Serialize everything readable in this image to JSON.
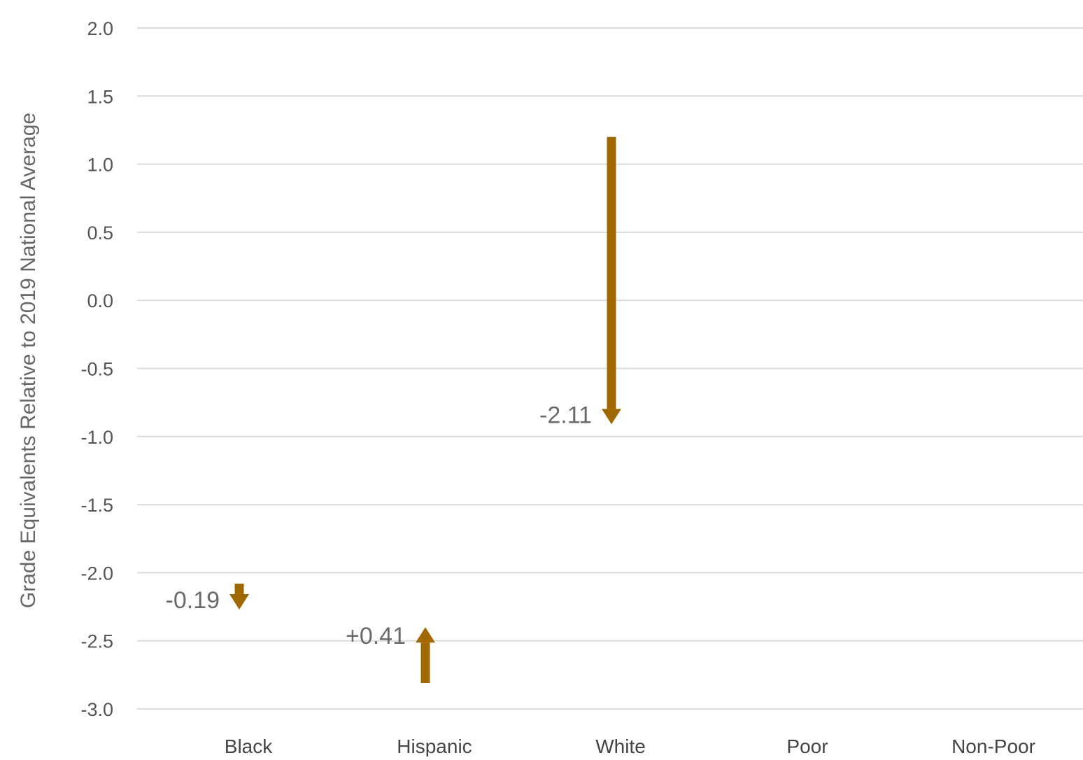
{
  "chart_data": {
    "type": "arrow",
    "title": "",
    "xlabel": "",
    "ylabel": "Grade Equivalents Relative to 2019 National Average",
    "ylim": [
      -3.0,
      2.0
    ],
    "yticks": [
      {
        "value": 2.0,
        "label": "2.0"
      },
      {
        "value": 1.5,
        "label": "1.5"
      },
      {
        "value": 1.0,
        "label": "1.0"
      },
      {
        "value": 0.5,
        "label": "0.5"
      },
      {
        "value": 0.0,
        "label": "0.0"
      },
      {
        "value": -0.5,
        "label": "-0.5"
      },
      {
        "value": -1.0,
        "label": "-1.0"
      },
      {
        "value": -1.5,
        "label": "-1.5"
      },
      {
        "value": -2.0,
        "label": "-2.0"
      },
      {
        "value": -2.5,
        "label": "-2.5"
      },
      {
        "value": -3.0,
        "label": "-3.0"
      }
    ],
    "categories": [
      "Black",
      "Hispanic",
      "White",
      "Poor",
      "Non-Poor"
    ],
    "grid": true,
    "legend": "none",
    "colors": {
      "arrow": "#A16800",
      "grid": "#dcdcdc"
    },
    "arrows": [
      {
        "category": "Black",
        "start": -2.08,
        "end": -2.27,
        "change_label": "-0.19",
        "direction": "down"
      },
      {
        "category": "Hispanic",
        "start": -2.81,
        "end": -2.4,
        "change_label": "+0.41",
        "direction": "up"
      },
      {
        "category": "White",
        "start": 1.2,
        "end": -0.91,
        "change_label": "-2.11",
        "direction": "down"
      }
    ]
  }
}
